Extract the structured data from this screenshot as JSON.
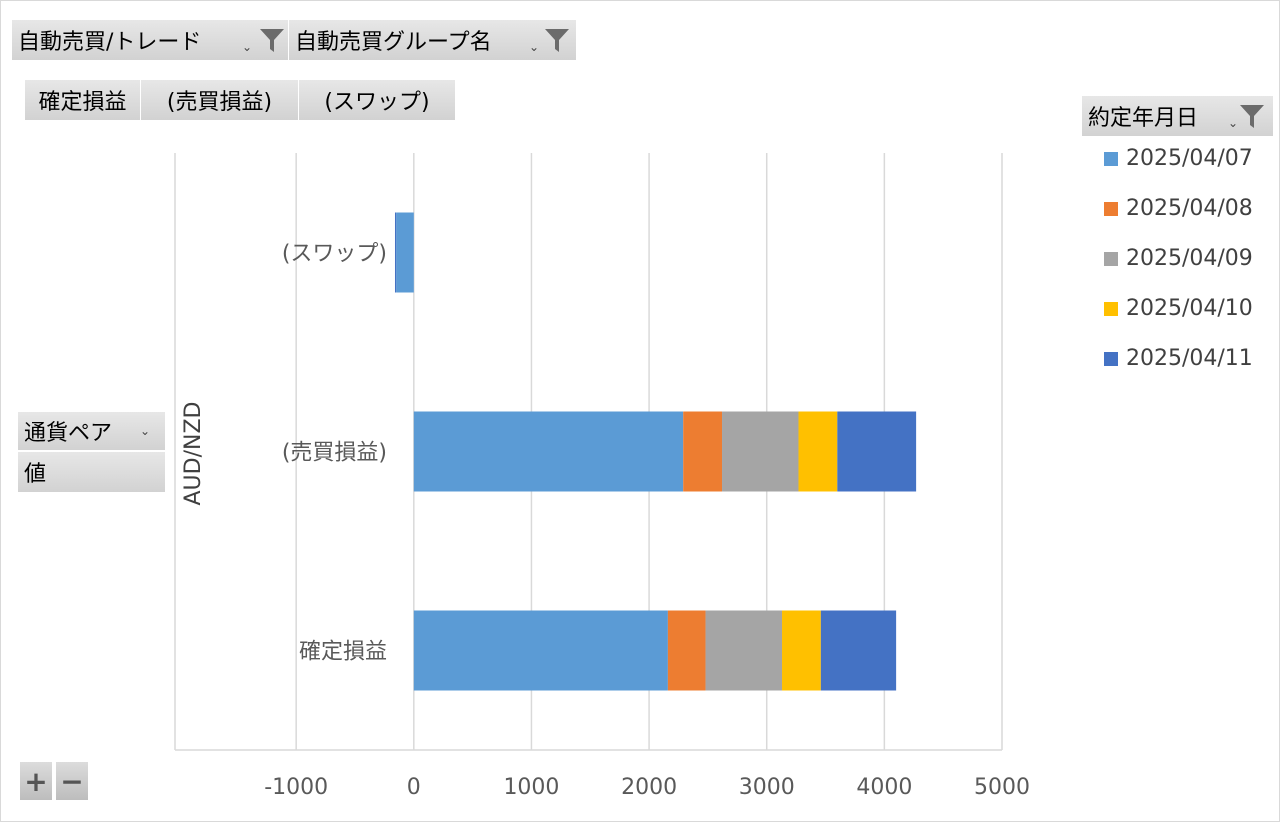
{
  "filters": {
    "trade_label": "自動売買/トレード",
    "group_label": "自動売買グループ名",
    "date_label": "約定年月日",
    "pair_label": "通貨ペア",
    "value_label": "値"
  },
  "value_buttons": [
    "確定損益",
    "(売買損益)",
    "(スワップ)"
  ],
  "icons": {
    "funnel": "filter-funnel-icon",
    "dropdown": "dropdown-arrow-icon",
    "expand": "+",
    "collapse": "−"
  },
  "colors": {
    "2025/04/07": "#5b9bd5",
    "2025/04/08": "#ed7d31",
    "2025/04/09": "#a5a5a5",
    "2025/04/10": "#ffc000",
    "2025/04/11": "#4472c4",
    "gridline": "#d9d9d9",
    "axis_text": "#595959"
  },
  "chart_data": {
    "type": "bar",
    "orientation": "horizontal",
    "stacked": true,
    "group_label": "AUD/NZD",
    "categories": [
      "(スワップ)",
      "(売買損益)",
      "確定損益"
    ],
    "series": [
      {
        "name": "2025/04/07",
        "values": [
          -150,
          2290,
          2160
        ]
      },
      {
        "name": "2025/04/08",
        "values": [
          0,
          330,
          320
        ]
      },
      {
        "name": "2025/04/09",
        "values": [
          0,
          650,
          650
        ]
      },
      {
        "name": "2025/04/10",
        "values": [
          0,
          330,
          330
        ]
      },
      {
        "name": "2025/04/11",
        "values": [
          -10,
          670,
          640
        ]
      }
    ],
    "x_ticks": [
      "-1000",
      "0",
      "1000",
      "2000",
      "3000",
      "4000",
      "5000"
    ],
    "xlim": [
      -2030,
      5000
    ],
    "grid": true,
    "legend": "right"
  }
}
